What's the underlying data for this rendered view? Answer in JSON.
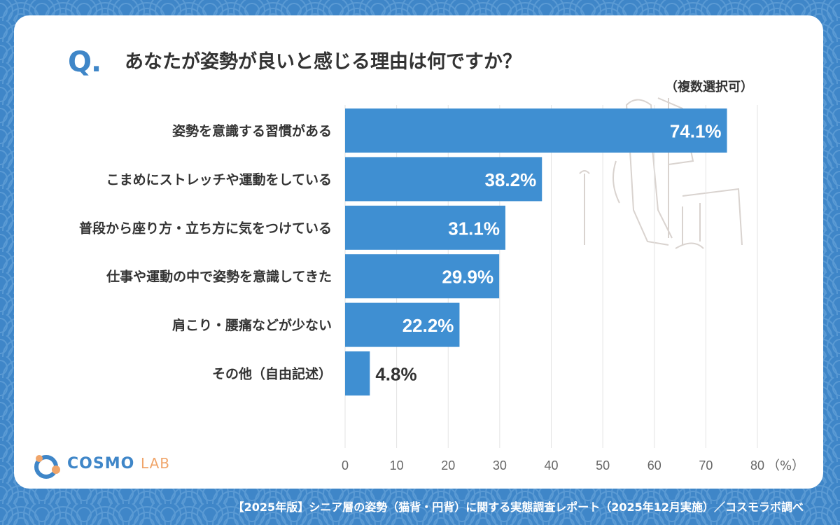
{
  "header": {
    "q_mark": "Q.",
    "title": "あなたが姿勢が良いと感じる理由は何ですか？",
    "note": "（複数選択可）"
  },
  "footer": {
    "source": "【2025年版】シニア層の姿勢（猫背・円背）に関する実態調査レポート（2025年12月実施）／コスモラボ調べ"
  },
  "logo": {
    "name_main": "COSMO",
    "name_sub": "LAB"
  },
  "colors": {
    "background": "#3f86c8",
    "bar": "#3f8fd2",
    "card": "#ffffff",
    "text": "#333333"
  },
  "chart_data": {
    "type": "bar",
    "orientation": "horizontal",
    "categories": [
      "姿勢を意識する習慣がある",
      "こまめにストレッチや運動をしている",
      "普段から座り方・立ち方に気をつけている",
      "仕事や運動の中で姿勢を意識してきた",
      "肩こり・腰痛などが少ない",
      "その他（自由記述）"
    ],
    "values": [
      74.1,
      38.2,
      31.1,
      29.9,
      22.2,
      4.8
    ],
    "value_labels": [
      "74.1%",
      "38.2%",
      "31.1%",
      "29.9%",
      "22.2%",
      "4.8%"
    ],
    "x_ticks": [
      "0",
      "10",
      "20",
      "30",
      "40",
      "50",
      "60",
      "70",
      "80"
    ],
    "x_unit": "（%）",
    "xlim": [
      0,
      80
    ],
    "grid": true
  }
}
